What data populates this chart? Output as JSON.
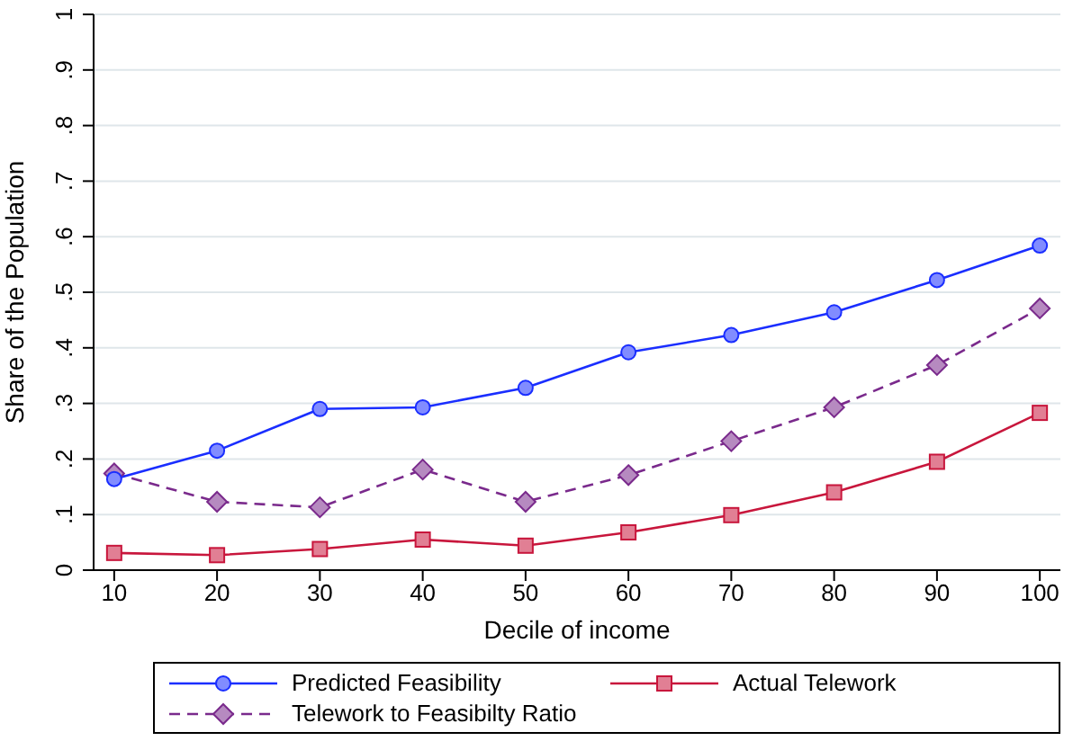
{
  "chart_data": {
    "type": "line",
    "xlabel": "Decile of income",
    "ylabel": "Share of the Population",
    "x": [
      10,
      20,
      30,
      40,
      50,
      60,
      70,
      80,
      90,
      100
    ],
    "series": [
      {
        "name": "Predicted Feasibility",
        "color": "#1a2eff",
        "marker": "circle",
        "line_style": "solid",
        "values": [
          0.164,
          0.215,
          0.29,
          0.293,
          0.328,
          0.392,
          0.423,
          0.464,
          0.522,
          0.584
        ]
      },
      {
        "name": "Actual Telework",
        "color": "#c8163c",
        "marker": "square",
        "line_style": "solid",
        "values": [
          0.031,
          0.027,
          0.038,
          0.055,
          0.044,
          0.068,
          0.099,
          0.14,
          0.195,
          0.283
        ]
      },
      {
        "name": "Telework to Feasibilty Ratio",
        "color": "#7a2a8c",
        "marker": "diamond",
        "line_style": "dashed",
        "values": [
          0.174,
          0.123,
          0.113,
          0.181,
          0.123,
          0.171,
          0.232,
          0.293,
          0.369,
          0.471
        ]
      }
    ],
    "xlim": [
      8,
      102
    ],
    "xticks": [
      10,
      20,
      30,
      40,
      50,
      60,
      70,
      80,
      90,
      100
    ],
    "ylim": [
      0,
      1
    ],
    "yticks": [
      {
        "value": 0,
        "label": "0"
      },
      {
        "value": 0.1,
        "label": ".1"
      },
      {
        "value": 0.2,
        "label": ".2"
      },
      {
        "value": 0.3,
        "label": ".3"
      },
      {
        "value": 0.4,
        "label": ".4"
      },
      {
        "value": 0.5,
        "label": ".5"
      },
      {
        "value": 0.6,
        "label": ".6"
      },
      {
        "value": 0.7,
        "label": ".7"
      },
      {
        "value": 0.8,
        "label": ".8"
      },
      {
        "value": 0.9,
        "label": ".9"
      },
      {
        "value": 1,
        "label": "1"
      }
    ],
    "grid": "y",
    "legend": "bottom"
  }
}
